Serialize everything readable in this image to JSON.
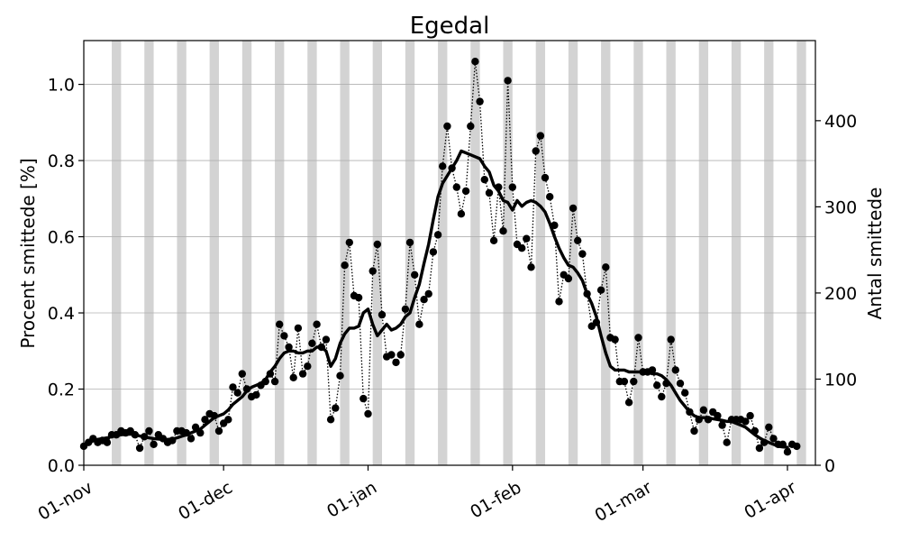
{
  "chart_data": {
    "type": "line",
    "title": "Egedal",
    "ylabel": "Procent smittede [%]",
    "y2label": "Antal smittede",
    "ylim": [
      0,
      1.115
    ],
    "y2lim": [
      0,
      493
    ],
    "xlim": [
      "2020-11-01",
      "2021-04-07"
    ],
    "yticks": [
      "0.0",
      "0.2",
      "0.4",
      "0.6",
      "0.8",
      "1.0"
    ],
    "y2ticks": [
      "0",
      "100",
      "200",
      "300",
      "400"
    ],
    "xticks": [
      {
        "date": "2020-11-01",
        "label": "01-nov"
      },
      {
        "date": "2020-12-01",
        "label": "01-dec"
      },
      {
        "date": "2021-01-01",
        "label": "01-jan"
      },
      {
        "date": "2021-02-01",
        "label": "01-feb"
      },
      {
        "date": "2021-03-01",
        "label": "01-mar"
      },
      {
        "date": "2021-04-01",
        "label": "01-apr"
      }
    ],
    "grid": "horizontal",
    "weekend_shading": true,
    "colors": {
      "line": "#000000",
      "weekend": "#d3d3d3",
      "grid": "#b0b0b0"
    },
    "series": [
      {
        "style": "dotted-markers",
        "start_date": "2020-11-01",
        "values": [
          0.05,
          0.06,
          0.07,
          0.06,
          0.065,
          0.06,
          0.08,
          0.08,
          0.09,
          0.085,
          0.09,
          0.08,
          0.045,
          0.075,
          0.09,
          0.055,
          0.08,
          0.07,
          0.06,
          0.065,
          0.09,
          0.09,
          0.085,
          0.07,
          0.1,
          0.085,
          0.12,
          0.135,
          0.13,
          0.09,
          0.11,
          0.12,
          0.205,
          0.19,
          0.24,
          0.2,
          0.18,
          0.185,
          0.21,
          0.22,
          0.24,
          0.22,
          0.37,
          0.34,
          0.31,
          0.23,
          0.36,
          0.24,
          0.26,
          0.32,
          0.37,
          0.31,
          0.33,
          0.12,
          0.15,
          0.235,
          0.525,
          0.585,
          0.445,
          0.44,
          0.175,
          0.135,
          0.51,
          0.58,
          0.395,
          0.285,
          0.29,
          0.27,
          0.29,
          0.41,
          0.585,
          0.5,
          0.37,
          0.435,
          0.45,
          0.56,
          0.605,
          0.785,
          0.89,
          0.78,
          0.73,
          0.66,
          0.72,
          0.89,
          1.06,
          0.955,
          0.75,
          0.715,
          0.59,
          0.73,
          0.615,
          1.01,
          0.73,
          0.58,
          0.57,
          0.595,
          0.52,
          0.825,
          0.865,
          0.755,
          0.705,
          0.63,
          0.43,
          0.5,
          0.49,
          0.675,
          0.59,
          0.555,
          0.45,
          0.365,
          0.375,
          0.46,
          0.52,
          0.335,
          0.33,
          0.22,
          0.22,
          0.165,
          0.22,
          0.335,
          0.245,
          0.245,
          0.25,
          0.21,
          0.18,
          0.215,
          0.33,
          0.25,
          0.215,
          0.19,
          0.14,
          0.09,
          0.12,
          0.145,
          0.12,
          0.14,
          0.13,
          0.105,
          0.06,
          0.12,
          0.12,
          0.12,
          0.115,
          0.13,
          0.09,
          0.045,
          0.06,
          0.1,
          0.07,
          0.055,
          0.055,
          0.035,
          0.055,
          0.05
        ]
      },
      {
        "style": "thick-line",
        "start_date": "2020-11-01",
        "values": [
          0.05,
          0.058,
          0.064,
          0.068,
          0.07,
          0.072,
          0.075,
          0.078,
          0.08,
          0.081,
          0.082,
          0.08,
          0.077,
          0.074,
          0.072,
          0.07,
          0.069,
          0.068,
          0.068,
          0.069,
          0.072,
          0.076,
          0.08,
          0.085,
          0.09,
          0.095,
          0.105,
          0.115,
          0.125,
          0.13,
          0.135,
          0.145,
          0.16,
          0.17,
          0.18,
          0.195,
          0.205,
          0.21,
          0.215,
          0.225,
          0.245,
          0.26,
          0.28,
          0.295,
          0.3,
          0.3,
          0.295,
          0.295,
          0.3,
          0.3,
          0.31,
          0.31,
          0.3,
          0.26,
          0.28,
          0.32,
          0.345,
          0.36,
          0.36,
          0.365,
          0.4,
          0.41,
          0.37,
          0.34,
          0.355,
          0.37,
          0.355,
          0.36,
          0.37,
          0.39,
          0.4,
          0.44,
          0.475,
          0.53,
          0.58,
          0.645,
          0.705,
          0.74,
          0.76,
          0.78,
          0.8,
          0.825,
          0.82,
          0.815,
          0.81,
          0.805,
          0.785,
          0.77,
          0.735,
          0.72,
          0.695,
          0.69,
          0.67,
          0.695,
          0.68,
          0.69,
          0.695,
          0.69,
          0.68,
          0.665,
          0.635,
          0.6,
          0.57,
          0.545,
          0.525,
          0.52,
          0.505,
          0.485,
          0.45,
          0.425,
          0.39,
          0.34,
          0.295,
          0.26,
          0.25,
          0.25,
          0.25,
          0.245,
          0.245,
          0.245,
          0.245,
          0.245,
          0.24,
          0.24,
          0.235,
          0.225,
          0.21,
          0.19,
          0.17,
          0.155,
          0.14,
          0.13,
          0.125,
          0.125,
          0.125,
          0.122,
          0.12,
          0.118,
          0.115,
          0.115,
          0.11,
          0.105,
          0.1,
          0.09,
          0.08,
          0.072,
          0.065,
          0.06,
          0.055,
          0.05,
          0.048,
          0.047
        ]
      }
    ]
  }
}
